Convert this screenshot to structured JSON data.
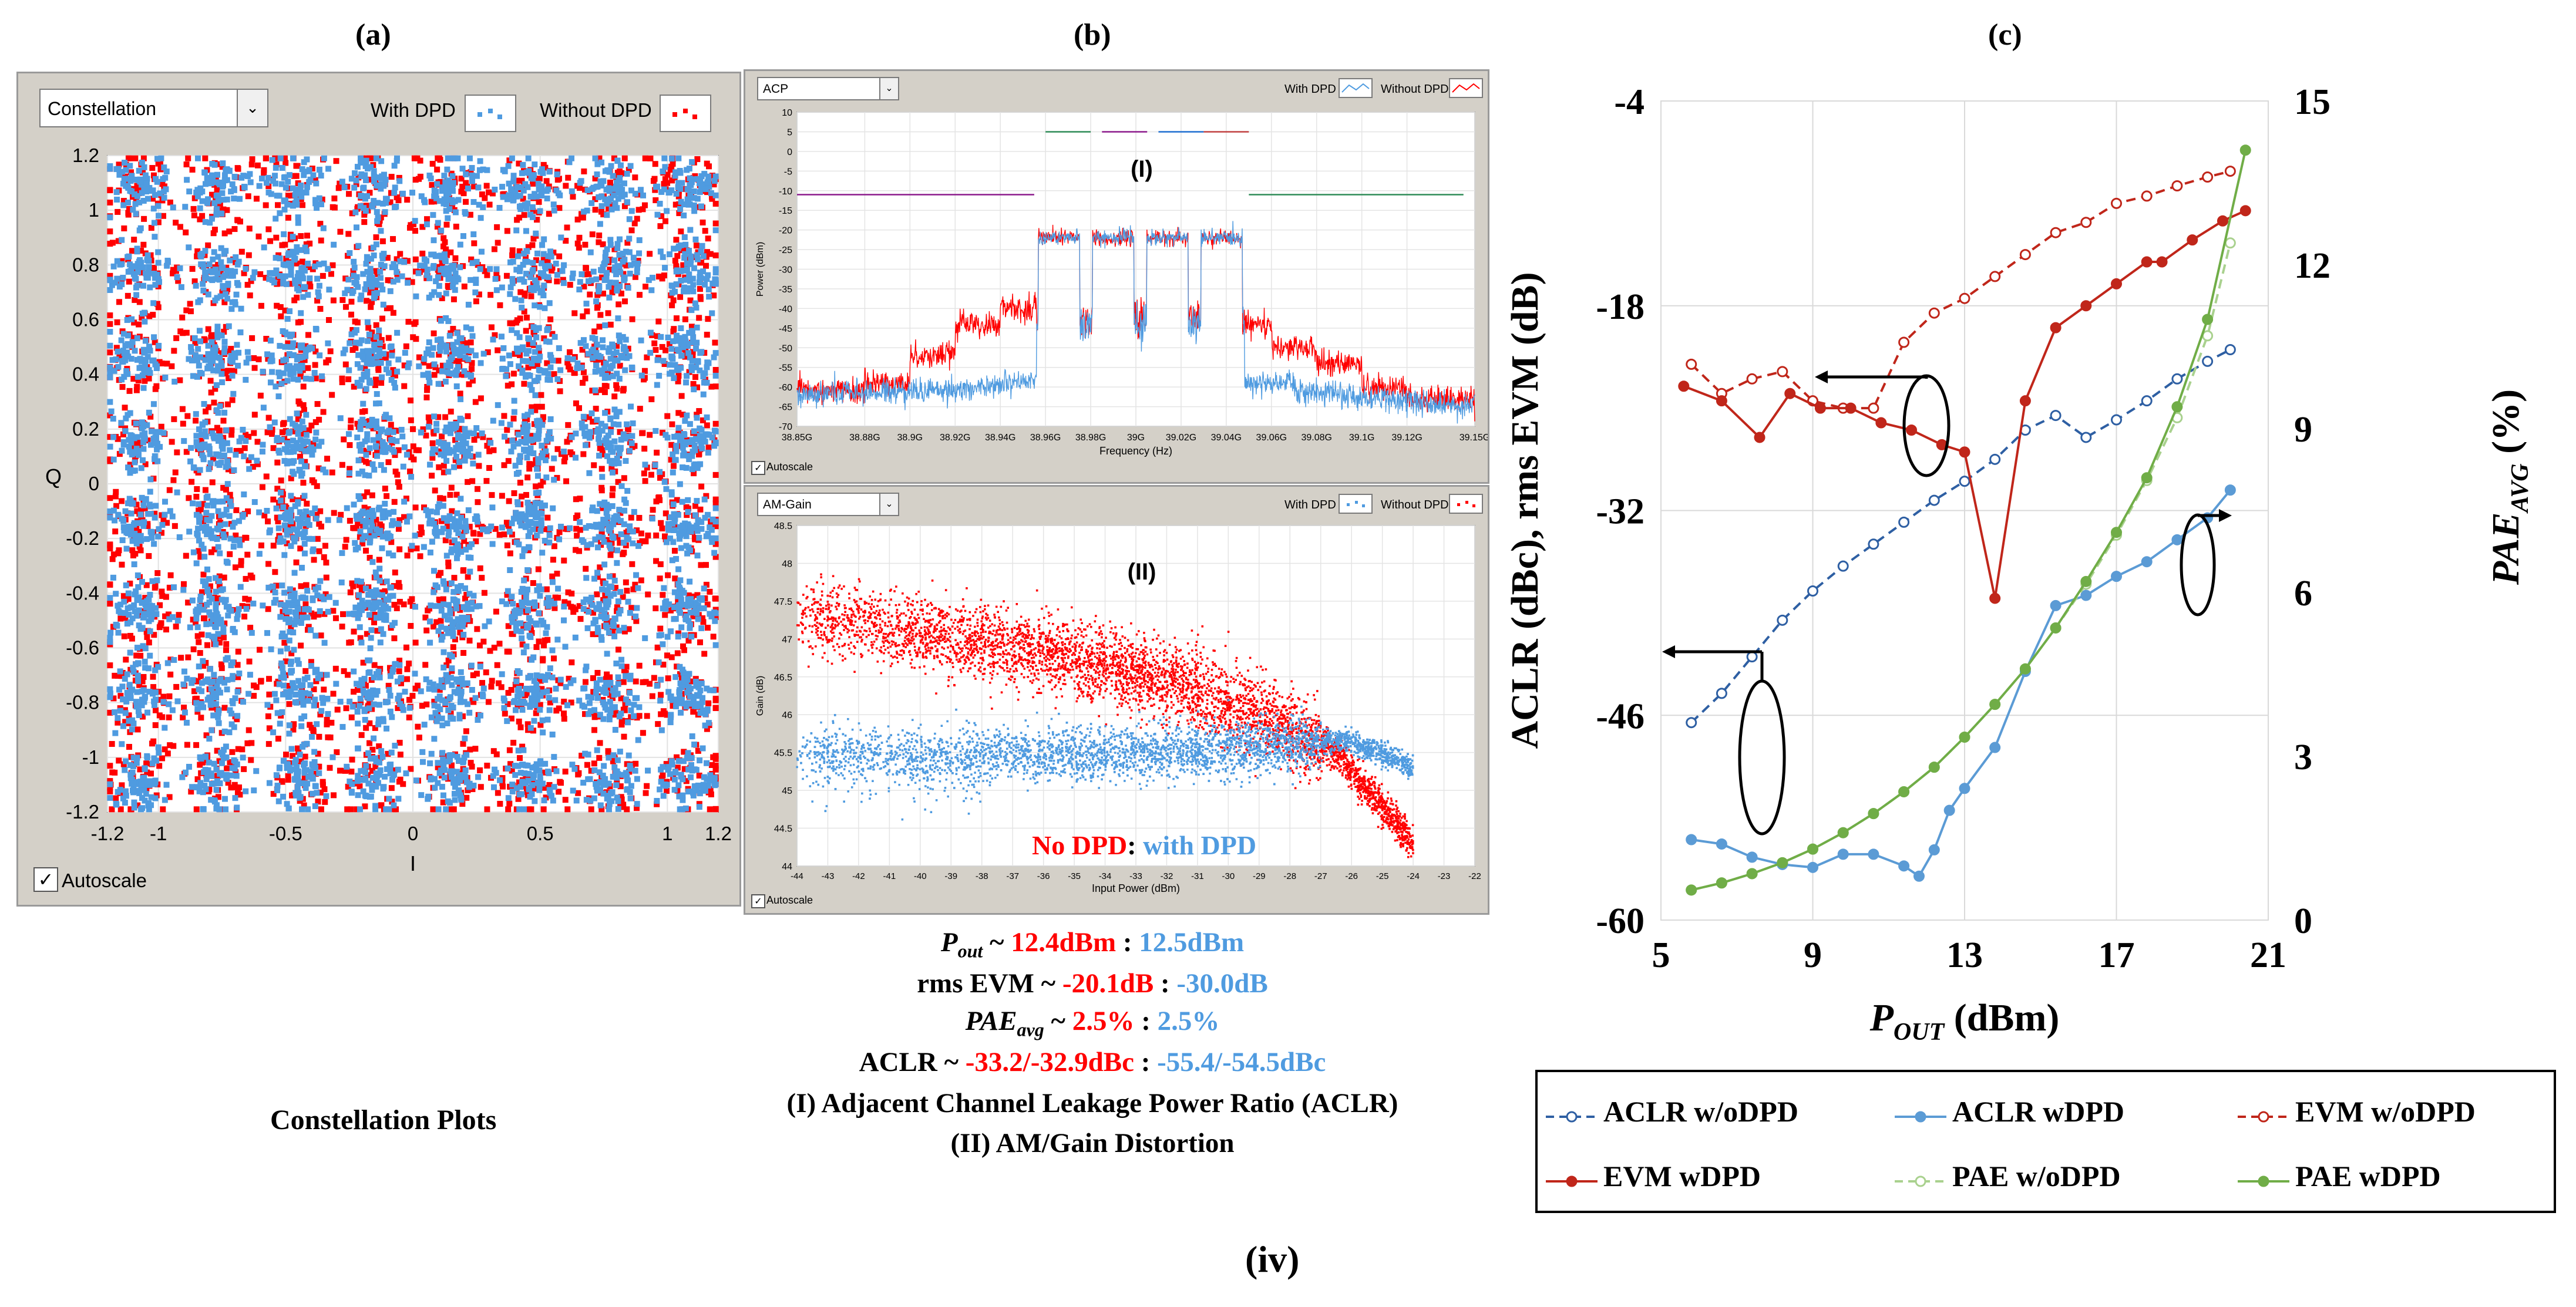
{
  "figure_label": "(iv)",
  "panels": {
    "a": {
      "letter": "(a)",
      "caption": "Constellation Plots",
      "dropdown": "Constellation",
      "legend": [
        "With DPD",
        "Without DPD"
      ],
      "autoscale": "Autoscale",
      "check": "✓"
    },
    "b": {
      "letter": "(b)",
      "acp": {
        "dropdown": "ACP",
        "legend": [
          "With DPD",
          "Without DPD"
        ],
        "marker": "(I)",
        "autoscale": "Autoscale",
        "check": "✓"
      },
      "gain": {
        "dropdown": "AM-Gain",
        "legend": [
          "With DPD",
          "Without DPD"
        ],
        "marker": "(II)",
        "autoscale": "Autoscale",
        "check": "✓",
        "annotation_red": "No DPD",
        "annotation_sep": ": ",
        "annotation_blue": "with DPD"
      }
    },
    "c": {
      "letter": "(c)"
    }
  },
  "summary": {
    "pout": {
      "label_main": "P",
      "label_sub": "out",
      "sep": " ~ ",
      "red": "12.4dBm",
      "colon": " : ",
      "blue": "12.5dBm"
    },
    "evm": {
      "label": "rms EVM",
      "sep": " ~ ",
      "red": "-20.1dB",
      "colon": " : ",
      "blue": "-30.0dB"
    },
    "pae": {
      "label_main": "PAE",
      "label_sub": "avg",
      "sep": " ~ ",
      "red": "2.5%",
      "colon": " : ",
      "blue": "2.5%"
    },
    "aclr": {
      "label": "ACLR",
      "sep": " ~ ",
      "red": "-33.2/-32.9dBc",
      "colon": " : ",
      "blue": "-55.4/-54.5dBc"
    },
    "note1": "(I) Adjacent Channel Leakage Power Ratio (ACLR)",
    "note2": "(II) AM/Gain Distortion"
  },
  "colors": {
    "red": "#ff0000",
    "blue": "#4f9be0",
    "aclr": "#2e5fa3",
    "aclr_dpd": "#5b9bd5",
    "evm": "#c0261a",
    "evm_dpd": "#c55a11",
    "pae": "#a9d18e",
    "pae_dpd": "#70ad47"
  },
  "chart_data": [
    {
      "type": "scatter",
      "title": "Constellation",
      "xlabel": "I",
      "ylabel": "Q",
      "xlim": [
        -1.2,
        1.2
      ],
      "ylim": [
        -1.2,
        1.2
      ],
      "x_ticks": [
        "-1.2",
        "-1",
        "-0.5",
        "0",
        "0.5",
        "1",
        "1.2"
      ],
      "y_ticks": [
        "1.2",
        "1",
        "0.8",
        "0.6",
        "0.4",
        "0.2",
        "0",
        "-0.2",
        "-0.4",
        "-0.6",
        "-0.8",
        "-1",
        "-1.2"
      ],
      "ideal_levels": [
        -1.08,
        -0.77,
        -0.46,
        -0.15,
        0.15,
        0.46,
        0.77,
        1.08
      ],
      "series": [
        {
          "name": "With DPD",
          "color": "#4f9be0",
          "spread": 0.06
        },
        {
          "name": "Without DPD",
          "color": "#ff0000",
          "spread": 0.085
        }
      ]
    },
    {
      "type": "line",
      "title": "ACP",
      "xlabel": "Frequency (Hz)",
      "ylabel": "Power (dBm)",
      "xlim": [
        38.85,
        39.15
      ],
      "ylim": [
        -70,
        10
      ],
      "x_ticks": [
        "38.88G",
        "38.9G",
        "38.92G",
        "38.94G",
        "38.96G",
        "38.98G",
        "39G",
        "39.02G",
        "39.04G",
        "39.06G",
        "39.08G",
        "39.1G",
        "39.12G",
        "39.15G"
      ],
      "y_ticks": [
        "10",
        "5",
        "0",
        "-5",
        "-10",
        "-15",
        "-20",
        "-25",
        "-30",
        "-35",
        "-40",
        "-45",
        "-50",
        "-55",
        "-60",
        "-65",
        "-70"
      ],
      "x_first_label": "38.85G",
      "channel_edges_ghz": [
        38.956,
        38.976,
        38.98,
        39.0,
        39.004,
        39.024,
        39.028,
        39.048
      ],
      "inband_dbm": -22,
      "series": [
        {
          "name": "With DPD",
          "color": "#4f9be0",
          "outband": [
            [
              38.85,
              -60
            ],
            [
              38.956,
              -62
            ],
            [
              39.048,
              -62
            ],
            [
              39.15,
              -63
            ]
          ]
        },
        {
          "name": "Without DPD",
          "color": "#ff0000",
          "steps": [
            [
              38.85,
              -61
            ],
            [
              38.88,
              -59
            ],
            [
              38.9,
              -52
            ],
            [
              38.92,
              -44
            ],
            [
              38.94,
              -40
            ],
            [
              38.956,
              -40
            ],
            [
              39.048,
              -44
            ],
            [
              39.06,
              -50
            ],
            [
              39.08,
              -54
            ],
            [
              39.1,
              -60
            ],
            [
              39.12,
              -63
            ],
            [
              39.15,
              -63
            ]
          ]
        }
      ],
      "limit_lines": [
        {
          "color": "#8b1a8b",
          "x": [
            38.85,
            38.955
          ],
          "y": -11
        },
        {
          "color": "#2e8b57",
          "x": [
            39.05,
            39.145
          ],
          "y": -11
        }
      ]
    },
    {
      "type": "scatter",
      "title": "AM-Gain",
      "xlabel": "Input Power (dBm)",
      "ylabel": "Gain (dB)",
      "xlim": [
        -44,
        -22
      ],
      "ylim": [
        44,
        48.5
      ],
      "x_ticks": [
        "-44",
        "-43",
        "-42",
        "-41",
        "-40",
        "-39",
        "-38",
        "-37",
        "-36",
        "-35",
        "-34",
        "-33",
        "-32",
        "-31",
        "-30",
        "-29",
        "-28",
        "-27",
        "-26",
        "-25",
        "-24",
        "-23",
        "-22"
      ],
      "y_ticks": [
        "48.5",
        "48",
        "47.5",
        "47",
        "46.5",
        "46",
        "45.5",
        "45",
        "44.5",
        "44"
      ],
      "series": [
        {
          "name": "Without DPD",
          "color": "#ff0000",
          "curve": [
            [
              -44,
              47.3
            ],
            [
              -40,
              47.1
            ],
            [
              -36,
              46.8
            ],
            [
              -32,
              46.45
            ],
            [
              -29,
              46.0
            ],
            [
              -26.5,
              45.5
            ],
            [
              -24,
              44.3
            ]
          ],
          "spread": 0.25
        },
        {
          "name": "With DPD",
          "color": "#4f9be0",
          "curve": [
            [
              -44,
              45.5
            ],
            [
              -38,
              45.45
            ],
            [
              -32,
              45.5
            ],
            [
              -28,
              45.6
            ],
            [
              -26,
              45.65
            ],
            [
              -24,
              45.3
            ]
          ],
          "spread": 0.17
        }
      ]
    },
    {
      "type": "line",
      "xlabel_main": "P",
      "xlabel_sub": "OUT",
      "xlabel_unit": " (dBm)",
      "ylabel": "ACLR (dBc), rms EVM (dB)",
      "y2label_main": "PAE",
      "y2label_sub": "AVG",
      "y2label_unit": " (%)",
      "xlim": [
        5,
        21
      ],
      "ylim": [
        -60,
        -4
      ],
      "y2lim": [
        0,
        15
      ],
      "x_ticks": [
        "5",
        "9",
        "13",
        "17",
        "21"
      ],
      "y_ticks": [
        "-4",
        "-18",
        "-32",
        "-46",
        "-60"
      ],
      "y2_ticks": [
        "15",
        "12",
        "9",
        "6",
        "3",
        "0"
      ],
      "series": [
        {
          "name": "ACLR w/oDPD",
          "axis": "left",
          "style": "dashed",
          "marker": "open",
          "color": "#2e5fa3",
          "x": [
            5.8,
            6.6,
            7.4,
            8.2,
            9.0,
            9.8,
            10.6,
            11.4,
            12.2,
            13.0,
            13.8,
            14.6,
            15.4,
            16.2,
            17.0,
            17.8,
            18.6,
            19.4,
            20.0
          ],
          "y": [
            -46.5,
            -44.5,
            -42.0,
            -39.5,
            -37.5,
            -35.8,
            -34.3,
            -32.8,
            -31.3,
            -30.0,
            -28.5,
            -26.5,
            -25.5,
            -27.0,
            -25.8,
            -24.5,
            -23.0,
            -21.8,
            -21.0
          ]
        },
        {
          "name": "ACLR wDPD",
          "axis": "left",
          "style": "solid",
          "marker": "filled",
          "color": "#5b9bd5",
          "x": [
            5.8,
            6.6,
            7.4,
            8.2,
            9.0,
            9.8,
            10.6,
            11.4,
            11.8,
            12.2,
            12.6,
            13.0,
            13.8,
            14.6,
            15.4,
            16.2,
            17.0,
            17.8,
            18.6,
            19.4,
            20.0
          ],
          "y": [
            -54.5,
            -54.8,
            -55.7,
            -56.2,
            -56.4,
            -55.5,
            -55.5,
            -56.3,
            -57.0,
            -55.2,
            -52.5,
            -51.0,
            -48.2,
            -43.0,
            -38.5,
            -37.8,
            -36.5,
            -35.5,
            -34.0,
            -32.5,
            -30.6
          ]
        },
        {
          "name": "EVM w/oDPD",
          "axis": "left",
          "style": "dashed",
          "marker": "open",
          "color": "#c0261a",
          "x": [
            5.8,
            6.6,
            7.4,
            8.2,
            9.0,
            9.8,
            10.6,
            11.4,
            12.2,
            13.0,
            13.8,
            14.6,
            15.4,
            16.2,
            17.0,
            17.8,
            18.6,
            19.4,
            20.0
          ],
          "y": [
            -22.0,
            -24.0,
            -23.0,
            -22.5,
            -24.5,
            -25.0,
            -25.0,
            -20.5,
            -18.5,
            -17.5,
            -16.0,
            -14.5,
            -13.0,
            -12.3,
            -11.0,
            -10.5,
            -9.8,
            -9.2,
            -8.8
          ]
        },
        {
          "name": "EVM wDPD",
          "axis": "left",
          "style": "solid",
          "marker": "filled",
          "color": "#c0261a",
          "x": [
            5.6,
            6.6,
            7.6,
            8.4,
            9.2,
            10.0,
            10.8,
            11.6,
            12.4,
            13.0,
            13.8,
            14.6,
            15.4,
            16.2,
            17.0,
            17.8,
            18.2,
            19.0,
            19.8,
            20.4
          ],
          "y": [
            -23.5,
            -24.5,
            -27.0,
            -24.0,
            -25.0,
            -25.0,
            -26.0,
            -26.5,
            -27.5,
            -28.0,
            -38.0,
            -24.5,
            -19.5,
            -18.0,
            -16.5,
            -15.0,
            -15.0,
            -13.5,
            -12.2,
            -11.5
          ]
        },
        {
          "name": "PAE w/oDPD",
          "axis": "right",
          "style": "dashed",
          "marker": "open",
          "color": "#a9d18e",
          "x": [
            5.8,
            6.6,
            7.4,
            8.2,
            9.0,
            9.8,
            10.6,
            11.4,
            12.2,
            13.0,
            13.8,
            14.6,
            15.4,
            16.2,
            17.0,
            17.8,
            18.6,
            19.4,
            20.0
          ],
          "y": [
            0.55,
            0.68,
            0.85,
            1.05,
            1.3,
            1.6,
            1.95,
            2.35,
            2.8,
            3.35,
            3.95,
            4.6,
            5.35,
            6.15,
            7.05,
            8.05,
            9.2,
            10.7,
            12.4
          ]
        },
        {
          "name": "PAE wDPD",
          "axis": "right",
          "style": "solid",
          "marker": "filled",
          "color": "#70ad47",
          "x": [
            5.8,
            6.6,
            7.4,
            8.2,
            9.0,
            9.8,
            10.6,
            11.4,
            12.2,
            13.0,
            13.8,
            14.6,
            15.4,
            16.2,
            17.0,
            17.8,
            18.6,
            19.4,
            20.4
          ],
          "y": [
            0.55,
            0.68,
            0.85,
            1.05,
            1.3,
            1.6,
            1.95,
            2.35,
            2.8,
            3.35,
            3.95,
            4.6,
            5.35,
            6.2,
            7.1,
            8.1,
            9.4,
            11.0,
            14.1
          ]
        }
      ],
      "legend_cols": 3
    }
  ]
}
